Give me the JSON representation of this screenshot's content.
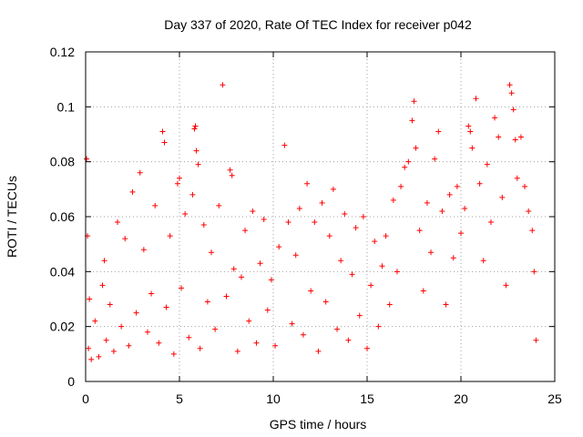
{
  "chart_data": {
    "type": "scatter",
    "title": "Day 337 of 2020, Rate Of TEC Index for receiver p042",
    "xlabel": "GPS time / hours",
    "ylabel": "ROTI / TECUs",
    "xlim": [
      0,
      25
    ],
    "ylim": [
      0,
      0.12
    ],
    "xticks": [
      0,
      5,
      10,
      15,
      20,
      25
    ],
    "xtick_labels": [
      "0",
      "5",
      "10",
      "15",
      "20",
      "25"
    ],
    "yticks": [
      0,
      0.02,
      0.04,
      0.06,
      0.08,
      0.1,
      0.12
    ],
    "ytick_labels": [
      "0",
      "0.02",
      "0.04",
      "0.06",
      "0.08",
      "0.1",
      "0.12"
    ],
    "grid": true,
    "marker": "+",
    "color": "#ff0000",
    "series": [
      {
        "points": [
          [
            0.05,
            0.081
          ],
          [
            0.1,
            0.053
          ],
          [
            0.15,
            0.012
          ],
          [
            0.2,
            0.03
          ],
          [
            0.3,
            0.008
          ],
          [
            0.5,
            0.022
          ],
          [
            0.7,
            0.009
          ],
          [
            0.9,
            0.035
          ],
          [
            1.0,
            0.044
          ],
          [
            1.1,
            0.015
          ],
          [
            1.3,
            0.028
          ],
          [
            1.5,
            0.011
          ],
          [
            1.7,
            0.058
          ],
          [
            1.9,
            0.02
          ],
          [
            2.1,
            0.052
          ],
          [
            2.3,
            0.013
          ],
          [
            2.5,
            0.069
          ],
          [
            2.7,
            0.025
          ],
          [
            2.9,
            0.076
          ],
          [
            3.1,
            0.048
          ],
          [
            3.3,
            0.018
          ],
          [
            3.5,
            0.032
          ],
          [
            3.7,
            0.064
          ],
          [
            3.9,
            0.014
          ],
          [
            4.1,
            0.091
          ],
          [
            4.2,
            0.087
          ],
          [
            4.3,
            0.027
          ],
          [
            4.5,
            0.053
          ],
          [
            4.7,
            0.01
          ],
          [
            4.9,
            0.072
          ],
          [
            5.0,
            0.074
          ],
          [
            5.1,
            0.034
          ],
          [
            5.3,
            0.061
          ],
          [
            5.5,
            0.016
          ],
          [
            5.7,
            0.068
          ],
          [
            5.8,
            0.092
          ],
          [
            5.85,
            0.093
          ],
          [
            5.9,
            0.084
          ],
          [
            6.0,
            0.079
          ],
          [
            6.1,
            0.012
          ],
          [
            6.3,
            0.057
          ],
          [
            6.5,
            0.029
          ],
          [
            6.7,
            0.047
          ],
          [
            6.9,
            0.019
          ],
          [
            7.1,
            0.064
          ],
          [
            7.3,
            0.108
          ],
          [
            7.5,
            0.031
          ],
          [
            7.7,
            0.077
          ],
          [
            7.8,
            0.075
          ],
          [
            7.9,
            0.041
          ],
          [
            8.1,
            0.011
          ],
          [
            8.3,
            0.038
          ],
          [
            8.5,
            0.055
          ],
          [
            8.7,
            0.022
          ],
          [
            8.9,
            0.062
          ],
          [
            9.1,
            0.014
          ],
          [
            9.3,
            0.043
          ],
          [
            9.5,
            0.059
          ],
          [
            9.7,
            0.026
          ],
          [
            9.9,
            0.037
          ],
          [
            10.1,
            0.013
          ],
          [
            10.3,
            0.049
          ],
          [
            10.6,
            0.086
          ],
          [
            10.8,
            0.058
          ],
          [
            11.0,
            0.021
          ],
          [
            11.2,
            0.046
          ],
          [
            11.4,
            0.063
          ],
          [
            11.6,
            0.017
          ],
          [
            11.8,
            0.072
          ],
          [
            12.0,
            0.033
          ],
          [
            12.2,
            0.058
          ],
          [
            12.4,
            0.011
          ],
          [
            12.6,
            0.065
          ],
          [
            12.8,
            0.029
          ],
          [
            13.0,
            0.053
          ],
          [
            13.2,
            0.07
          ],
          [
            13.4,
            0.019
          ],
          [
            13.6,
            0.044
          ],
          [
            13.8,
            0.061
          ],
          [
            14.0,
            0.015
          ],
          [
            14.2,
            0.039
          ],
          [
            14.4,
            0.056
          ],
          [
            14.6,
            0.024
          ],
          [
            14.8,
            0.06
          ],
          [
            15.0,
            0.012
          ],
          [
            15.2,
            0.035
          ],
          [
            15.4,
            0.051
          ],
          [
            15.6,
            0.02
          ],
          [
            15.8,
            0.042
          ],
          [
            16.0,
            0.053
          ],
          [
            16.2,
            0.028
          ],
          [
            16.4,
            0.066
          ],
          [
            16.6,
            0.04
          ],
          [
            16.8,
            0.071
          ],
          [
            17.0,
            0.078
          ],
          [
            17.2,
            0.08
          ],
          [
            17.4,
            0.095
          ],
          [
            17.5,
            0.102
          ],
          [
            17.6,
            0.085
          ],
          [
            17.8,
            0.055
          ],
          [
            18.0,
            0.033
          ],
          [
            18.2,
            0.065
          ],
          [
            18.4,
            0.047
          ],
          [
            18.6,
            0.081
          ],
          [
            18.8,
            0.091
          ],
          [
            19.0,
            0.062
          ],
          [
            19.2,
            0.028
          ],
          [
            19.4,
            0.068
          ],
          [
            19.6,
            0.045
          ],
          [
            19.8,
            0.071
          ],
          [
            20.0,
            0.054
          ],
          [
            20.2,
            0.063
          ],
          [
            20.4,
            0.093
          ],
          [
            20.5,
            0.091
          ],
          [
            20.6,
            0.085
          ],
          [
            20.8,
            0.103
          ],
          [
            21.0,
            0.072
          ],
          [
            21.2,
            0.044
          ],
          [
            21.4,
            0.079
          ],
          [
            21.6,
            0.058
          ],
          [
            21.8,
            0.096
          ],
          [
            22.0,
            0.089
          ],
          [
            22.2,
            0.067
          ],
          [
            22.4,
            0.035
          ],
          [
            22.6,
            0.108
          ],
          [
            22.7,
            0.105
          ],
          [
            22.8,
            0.099
          ],
          [
            22.9,
            0.088
          ],
          [
            23.0,
            0.074
          ],
          [
            23.2,
            0.089
          ],
          [
            23.4,
            0.071
          ],
          [
            23.6,
            0.062
          ],
          [
            23.8,
            0.055
          ],
          [
            23.9,
            0.04
          ],
          [
            24.0,
            0.015
          ]
        ]
      }
    ]
  }
}
